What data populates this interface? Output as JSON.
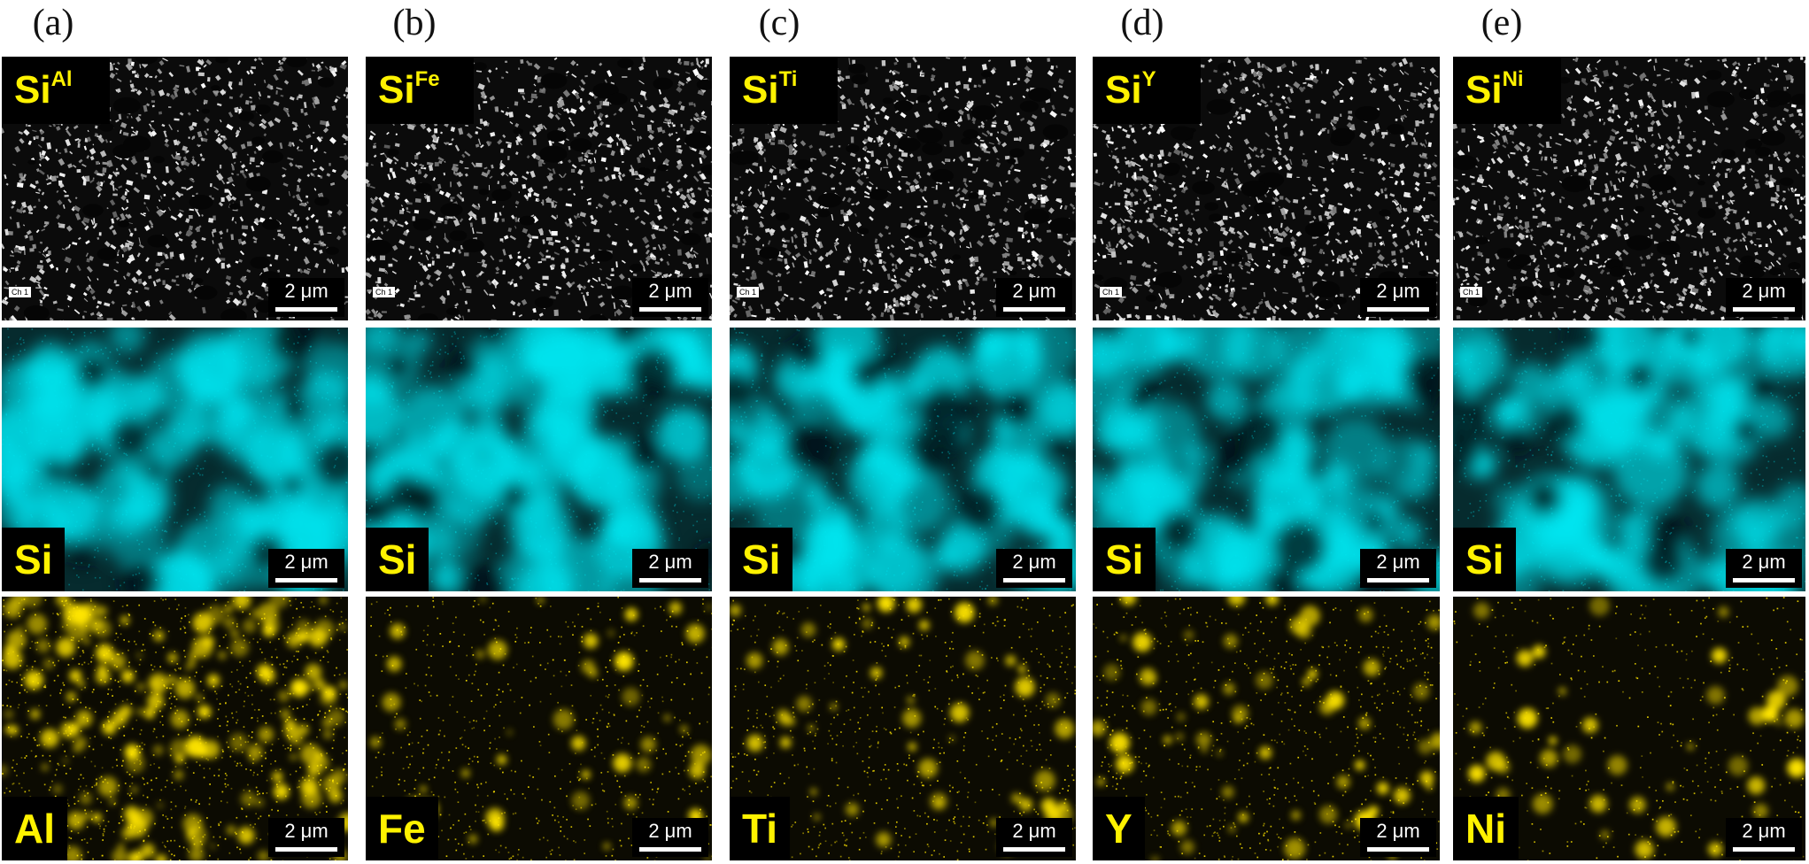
{
  "columns": [
    {
      "label": "(a)",
      "sample_base": "Si",
      "sample_sup": "Al",
      "element": "Al"
    },
    {
      "label": "(b)",
      "sample_base": "Si",
      "sample_sup": "Fe",
      "element": "Fe"
    },
    {
      "label": "(c)",
      "sample_base": "Si",
      "sample_sup": "Ti",
      "element": "Ti"
    },
    {
      "label": "(d)",
      "sample_base": "Si",
      "sample_sup": "Y",
      "element": "Y"
    },
    {
      "label": "(e)",
      "sample_base": "Si",
      "sample_sup": "Ni",
      "element": "Ni"
    }
  ],
  "si_map_label": "Si",
  "scale_bar": "2 μm",
  "sem_channel_tag": "Ch 1",
  "colors": {
    "si_map": "#00e5f0",
    "dopant_map": "#ffe500",
    "label_text": "#fff200"
  }
}
